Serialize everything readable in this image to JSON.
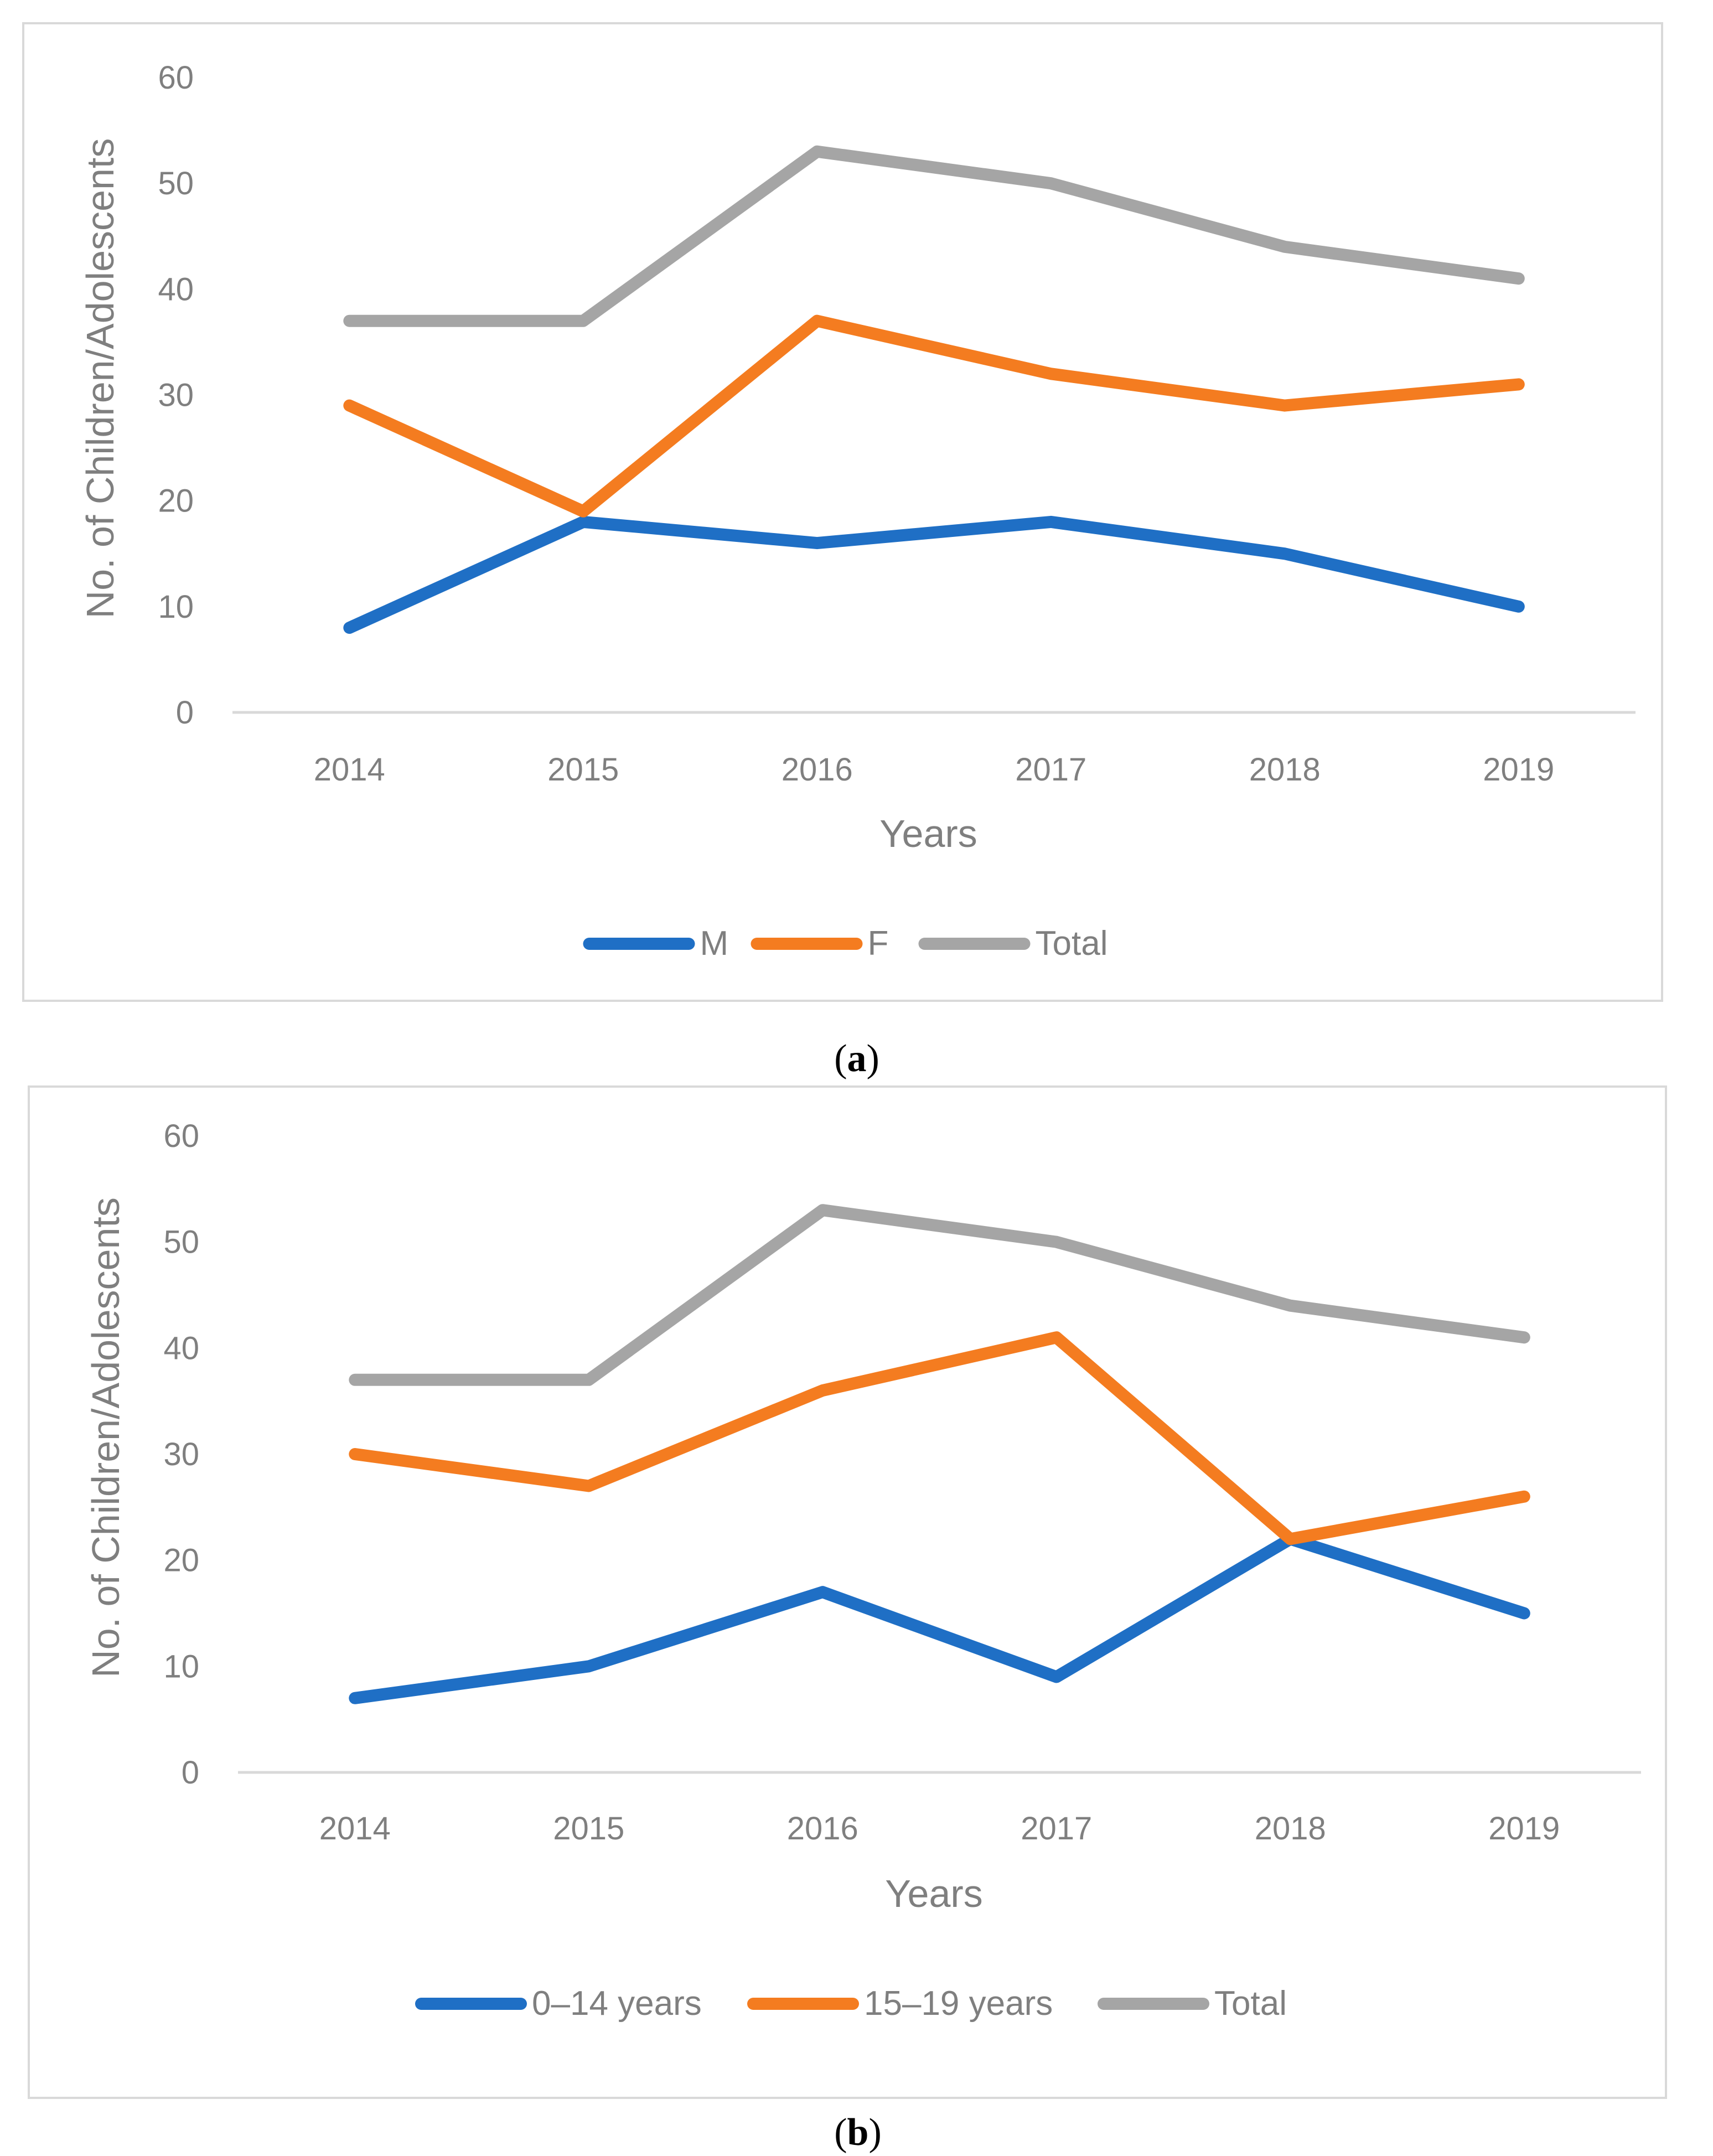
{
  "colors": {
    "series1": "#1f6fc5",
    "series2": "#f47c20",
    "total": "#a5a5a5"
  },
  "panels": [
    {
      "caption_letter": "a",
      "chart_data": {
        "type": "line",
        "x": [
          "2014",
          "2015",
          "2016",
          "2017",
          "2018",
          "2019"
        ],
        "series": [
          {
            "name": "M",
            "values": [
              8,
              18,
              16,
              18,
              15,
              10
            ]
          },
          {
            "name": "F",
            "values": [
              29,
              19,
              37,
              32,
              29,
              31
            ]
          },
          {
            "name": "Total",
            "values": [
              37,
              37,
              53,
              50,
              44,
              41
            ]
          }
        ],
        "xlabel": "Years",
        "ylabel": "No. of Children/Adolescents",
        "ylim": [
          0,
          60
        ],
        "yticks": [
          "0",
          "10",
          "20",
          "30",
          "40",
          "50",
          "60"
        ],
        "grid": false,
        "legend": "bottom"
      }
    },
    {
      "caption_letter": "b",
      "chart_data": {
        "type": "line",
        "x": [
          "2014",
          "2015",
          "2016",
          "2017",
          "2018",
          "2019"
        ],
        "series": [
          {
            "name": "0–14 years",
            "values": [
              7,
              10,
              17,
              9,
              22,
              15
            ]
          },
          {
            "name": "15–19 years",
            "values": [
              30,
              27,
              36,
              41,
              22,
              26
            ]
          },
          {
            "name": "Total",
            "values": [
              37,
              37,
              53,
              50,
              44,
              41
            ]
          }
        ],
        "xlabel": "Years",
        "ylabel": "No. of Children/Adolescents",
        "ylim": [
          0,
          60
        ],
        "yticks": [
          "0",
          "10",
          "20",
          "30",
          "40",
          "50",
          "60"
        ],
        "grid": false,
        "legend": "bottom"
      }
    }
  ]
}
